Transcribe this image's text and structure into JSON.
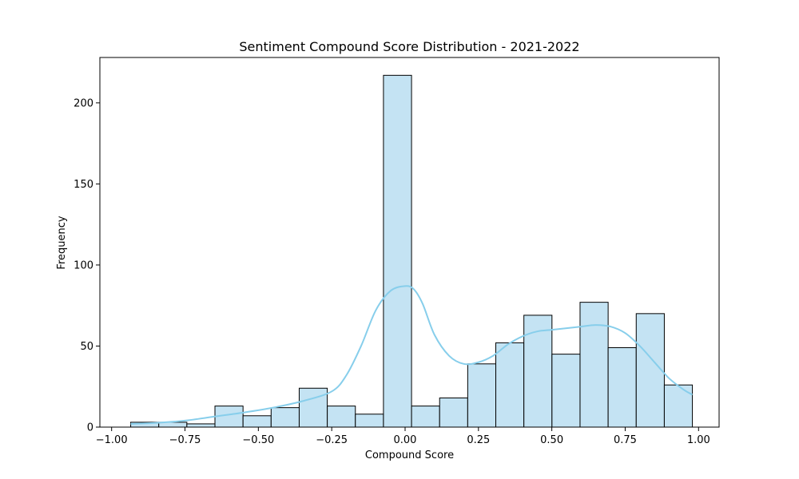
{
  "chart_data": {
    "type": "bar",
    "title": "Sentiment Compound Score Distribution - 2021-2022",
    "xlabel": "Compound Score",
    "ylabel": "Frequency",
    "xlim": [
      -1.04,
      1.07
    ],
    "ylim": [
      0,
      228
    ],
    "x_ticks": [
      -1.0,
      -0.75,
      -0.5,
      -0.25,
      0.0,
      0.25,
      0.5,
      0.75,
      1.0
    ],
    "x_tick_labels": [
      "−1.00",
      "−0.75",
      "−0.50",
      "−0.25",
      "0.00",
      "0.25",
      "0.50",
      "0.75",
      "1.00"
    ],
    "y_ticks": [
      0,
      50,
      100,
      150,
      200
    ],
    "y_tick_labels": [
      "0",
      "50",
      "100",
      "150",
      "200"
    ],
    "bins": [
      {
        "x0": -0.935,
        "x1": -0.8393,
        "count": 3
      },
      {
        "x0": -0.8393,
        "x1": -0.7436,
        "count": 3
      },
      {
        "x0": -0.7436,
        "x1": -0.6479,
        "count": 2
      },
      {
        "x0": -0.6479,
        "x1": -0.5522,
        "count": 13
      },
      {
        "x0": -0.5522,
        "x1": -0.4565,
        "count": 7
      },
      {
        "x0": -0.4565,
        "x1": -0.3608,
        "count": 12
      },
      {
        "x0": -0.3608,
        "x1": -0.2651,
        "count": 24
      },
      {
        "x0": -0.2651,
        "x1": -0.1694,
        "count": 13
      },
      {
        "x0": -0.1694,
        "x1": -0.0737,
        "count": 8
      },
      {
        "x0": -0.0737,
        "x1": 0.022,
        "count": 217
      },
      {
        "x0": 0.022,
        "x1": 0.1177,
        "count": 13
      },
      {
        "x0": 0.1177,
        "x1": 0.2134,
        "count": 18
      },
      {
        "x0": 0.2134,
        "x1": 0.3091,
        "count": 39
      },
      {
        "x0": 0.3091,
        "x1": 0.4048,
        "count": 52
      },
      {
        "x0": 0.4048,
        "x1": 0.5005,
        "count": 69
      },
      {
        "x0": 0.5005,
        "x1": 0.5962,
        "count": 45
      },
      {
        "x0": 0.5962,
        "x1": 0.6919,
        "count": 77
      },
      {
        "x0": 0.6919,
        "x1": 0.7876,
        "count": 49
      },
      {
        "x0": 0.7876,
        "x1": 0.8833,
        "count": 70
      },
      {
        "x0": 0.8833,
        "x1": 0.979,
        "count": 26
      }
    ],
    "kde": {
      "x": [
        -0.935,
        -0.85,
        -0.75,
        -0.65,
        -0.55,
        -0.45,
        -0.35,
        -0.25,
        -0.2,
        -0.15,
        -0.1,
        -0.05,
        0.0,
        0.03,
        0.06,
        0.1,
        0.15,
        0.2,
        0.25,
        0.3,
        0.35,
        0.4,
        0.45,
        0.5,
        0.55,
        0.6,
        0.65,
        0.7,
        0.75,
        0.8,
        0.85,
        0.9,
        0.95,
        0.979
      ],
      "y": [
        2,
        2.6,
        4,
        6.5,
        9,
        12,
        16,
        22,
        32,
        50,
        72,
        84,
        87,
        85,
        76,
        57,
        44,
        39,
        40,
        44,
        51,
        56,
        59,
        60,
        61,
        62,
        63,
        62,
        58,
        50,
        40,
        30,
        23,
        20
      ]
    },
    "colors": {
      "bar_fill": "#c4e3f3",
      "bar_edge": "#000000",
      "kde_line": "#87ceeb"
    },
    "grid": false
  }
}
